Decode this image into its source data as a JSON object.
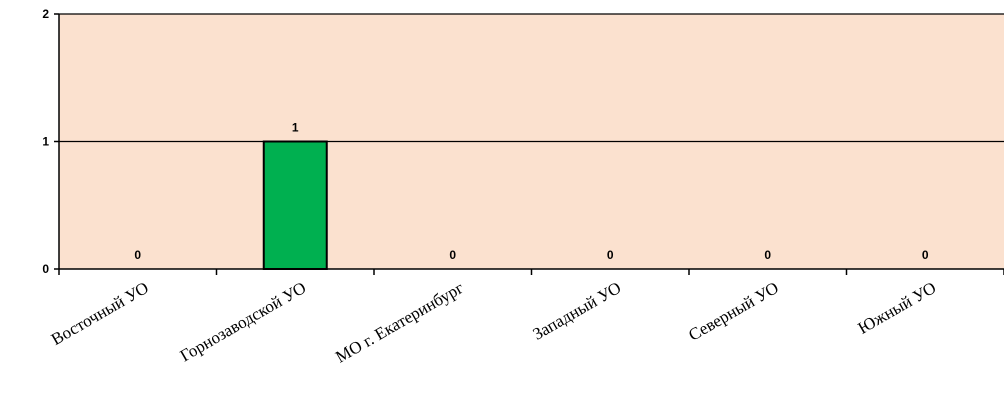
{
  "chart_data": {
    "type": "bar",
    "categories": [
      "Восточный УО",
      "Горнозаводской УО",
      "МО г. Екатеринбург",
      "Западный УО",
      "Северный УО",
      "Южный УО"
    ],
    "values": [
      0,
      1,
      0,
      0,
      0,
      0
    ],
    "data_labels": [
      "0",
      "1",
      "0",
      "0",
      "0",
      "0"
    ],
    "yticks": [
      "0",
      "1",
      "2"
    ],
    "ylim": [
      0,
      2
    ],
    "grid": true,
    "legend": "none",
    "colors": {
      "plot_background": "#fbe1cf",
      "bar_fill": "#00b050",
      "bar_stroke": "#000000",
      "gridline": "#000000"
    }
  }
}
